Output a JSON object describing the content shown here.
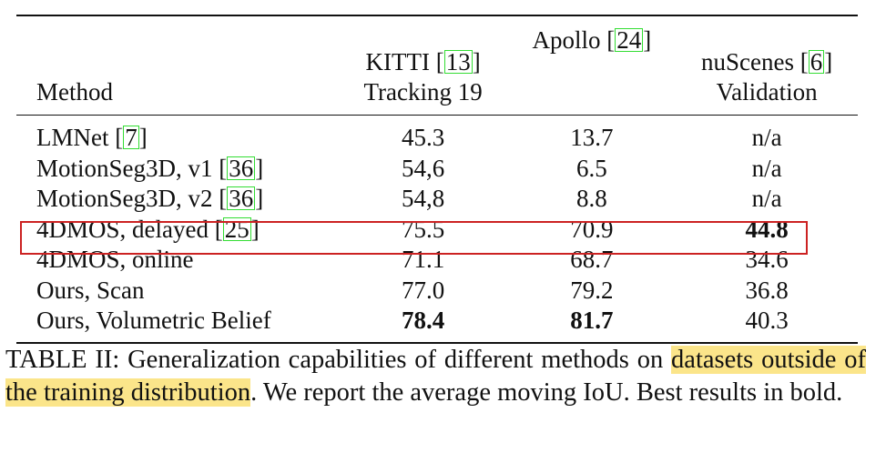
{
  "table": {
    "headers": {
      "method": "Method",
      "kitti_line1": "KITTI [",
      "kitti_cite": "13",
      "kitti_line1_end": "]",
      "kitti_line2": "Tracking 19",
      "apollo": "Apollo [",
      "apollo_cite": "24",
      "apollo_end": "]",
      "nusc_line1": "nuScenes [",
      "nusc_cite": "6",
      "nusc_line1_end": "]",
      "nusc_line2": "Validation"
    },
    "rows": [
      {
        "method": "LMNet [",
        "cite": "7",
        "method_end": "]",
        "kitti": "45.3",
        "apollo": "13.7",
        "nusc": "n/a"
      },
      {
        "method": "MotionSeg3D, v1 [",
        "cite": "36",
        "method_end": "]",
        "kitti": "54,6",
        "apollo": "6.5",
        "nusc": "n/a"
      },
      {
        "method": "MotionSeg3D, v2 [",
        "cite": "36",
        "method_end": "]",
        "kitti": "54,8",
        "apollo": "8.8",
        "nusc": "n/a"
      },
      {
        "method": "4DMOS, delayed [",
        "cite": "25",
        "method_end": "]",
        "kitti": "75.5",
        "apollo": "70.9",
        "nusc": "44.8"
      },
      {
        "method": "4DMOS, online",
        "kitti": "71.1",
        "apollo": "68.7",
        "nusc": "34.6"
      },
      {
        "method": "Ours, Scan",
        "kitti": "77.0",
        "apollo": "79.2",
        "nusc": "36.8"
      },
      {
        "method": "Ours, Volumetric Belief",
        "kitti": "78.4",
        "apollo": "81.7",
        "nusc": "40.3"
      }
    ]
  },
  "caption": {
    "prefix": "TABLE II: Generalization capabilities of different methods on ",
    "highlighted": "datasets outside of the training distribution",
    "suffix": ". We report the average moving IoU. Best results in bold."
  },
  "colors": {
    "highlight_box": "#cc2222",
    "citation_box": "#33dd33",
    "caption_highlight": "#fbe58a"
  }
}
